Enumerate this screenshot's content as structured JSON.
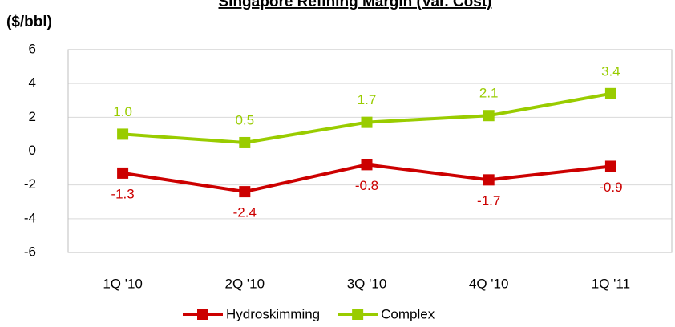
{
  "chart_data": {
    "type": "line",
    "title": "Singapore Refining Margin (Var. Cost)",
    "y_axis_label": "($/bbl)",
    "categories": [
      "1Q '10",
      "2Q '10",
      "3Q '10",
      "4Q '10",
      "1Q '11"
    ],
    "series": [
      {
        "name": "Hydroskimming",
        "color": "#cc0000",
        "values": [
          -1.3,
          -2.4,
          -0.8,
          -1.7,
          -0.9
        ],
        "value_labels": [
          "-1.3",
          "-2.4",
          "-0.8",
          "-1.7",
          "-0.9"
        ]
      },
      {
        "name": "Complex",
        "color": "#99cc00",
        "values": [
          1.0,
          0.5,
          1.7,
          2.1,
          3.4
        ],
        "value_labels": [
          "1.0",
          "0.5",
          "1.7",
          "2.1",
          "3.4"
        ]
      }
    ],
    "ylim": [
      -6,
      6
    ],
    "yticks": [
      -6,
      -4,
      -2,
      0,
      2,
      4,
      6
    ],
    "grid": true,
    "legend": "bottom"
  }
}
